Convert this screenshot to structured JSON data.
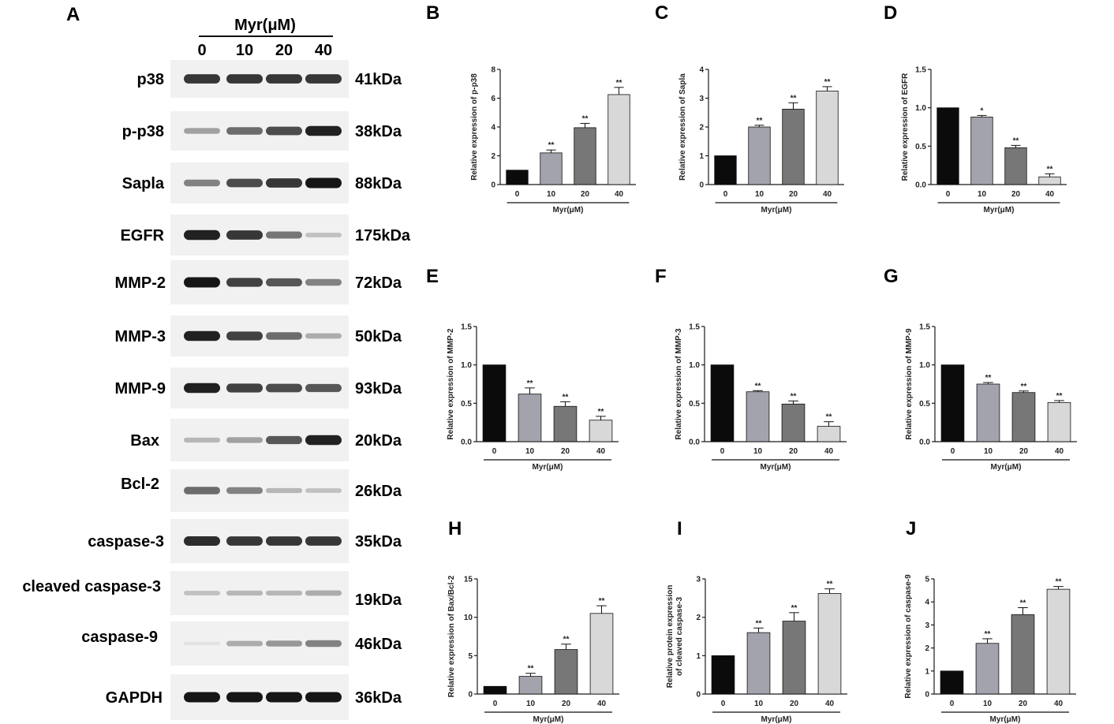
{
  "blot": {
    "letter": "A",
    "title": "Myr(μM)",
    "lanes": [
      "0",
      "10",
      "20",
      "40"
    ],
    "rows": [
      {
        "protein": "p38",
        "size": "41kDa",
        "intensity": [
          0.85,
          0.85,
          0.85,
          0.85
        ]
      },
      {
        "protein": "p-p38",
        "size": "38kDa",
        "intensity": [
          0.35,
          0.6,
          0.75,
          0.95
        ]
      },
      {
        "protein": "Sapla",
        "size": "88kDa",
        "intensity": [
          0.5,
          0.75,
          0.85,
          1.0
        ]
      },
      {
        "protein": "EGFR",
        "size": "175kDa",
        "intensity": [
          0.95,
          0.85,
          0.55,
          0.2
        ]
      },
      {
        "protein": "MMP-2",
        "size": "72kDa",
        "intensity": [
          1.0,
          0.8,
          0.7,
          0.5
        ]
      },
      {
        "protein": "MMP-3",
        "size": "50kDa",
        "intensity": [
          0.95,
          0.8,
          0.6,
          0.3
        ]
      },
      {
        "protein": "MMP-9",
        "size": "93kDa",
        "intensity": [
          0.95,
          0.8,
          0.75,
          0.7
        ]
      },
      {
        "protein": "Bax",
        "size": "20kDa",
        "intensity": [
          0.25,
          0.35,
          0.7,
          0.95
        ]
      },
      {
        "protein": "Bcl-2",
        "size": "26kDa",
        "intensity": [
          0.6,
          0.5,
          0.25,
          0.2
        ]
      },
      {
        "protein": "caspase-3",
        "size": "35kDa",
        "intensity": [
          0.9,
          0.85,
          0.85,
          0.85
        ]
      },
      {
        "protein": "cleaved caspase-3",
        "size": "19kDa",
        "intensity": [
          0.2,
          0.25,
          0.25,
          0.3
        ]
      },
      {
        "protein": "caspase-9",
        "size": "46kDa",
        "intensity": [
          0.05,
          0.3,
          0.4,
          0.5
        ]
      },
      {
        "protein": "GAPDH",
        "size": "36kDa",
        "intensity": [
          1.0,
          1.0,
          1.0,
          1.0
        ]
      }
    ]
  },
  "colors": {
    "bar_fills": [
      "#0b0b0b",
      "#a3a3ad",
      "#777777",
      "#d8d8d8"
    ],
    "axis": "#1a1a1a"
  },
  "chart_data": [
    {
      "letter": "B",
      "type": "bar",
      "ylabel": "Relative expression of p-p38",
      "xlabel": "Myr(μM)",
      "categories": [
        "0",
        "10",
        "20",
        "40"
      ],
      "values": [
        1.0,
        2.2,
        3.95,
        6.25
      ],
      "errors": [
        0,
        0.2,
        0.3,
        0.5
      ],
      "significance": [
        "",
        "**",
        "**",
        "**"
      ],
      "ylim": [
        0,
        8
      ],
      "yticks": [
        0,
        2,
        4,
        6,
        8
      ],
      "ytick_labels": [
        "0",
        "2",
        "4",
        "6",
        "8"
      ]
    },
    {
      "letter": "C",
      "type": "bar",
      "ylabel": "Relative expression of Sapla",
      "xlabel": "Myr(μM)",
      "categories": [
        "0",
        "10",
        "20",
        "40"
      ],
      "values": [
        1.0,
        2.0,
        2.62,
        3.25
      ],
      "errors": [
        0,
        0.06,
        0.22,
        0.15
      ],
      "significance": [
        "",
        "**",
        "**",
        "**"
      ],
      "ylim": [
        0,
        4
      ],
      "yticks": [
        0,
        1,
        2,
        3,
        4
      ],
      "ytick_labels": [
        "0",
        "1",
        "2",
        "3",
        "4"
      ]
    },
    {
      "letter": "D",
      "type": "bar",
      "ylabel": "Relative expression of EGFR",
      "xlabel": "Myr(μM)",
      "categories": [
        "0",
        "10",
        "20",
        "40"
      ],
      "values": [
        1.0,
        0.88,
        0.48,
        0.1
      ],
      "errors": [
        0,
        0.02,
        0.03,
        0.04
      ],
      "significance": [
        "",
        "*",
        "**",
        "**"
      ],
      "ylim": [
        0,
        1.5
      ],
      "yticks": [
        0,
        0.5,
        1.0,
        1.5
      ],
      "ytick_labels": [
        "0.0",
        "0.5",
        "1.0",
        "1.5"
      ]
    },
    {
      "letter": "E",
      "type": "bar",
      "ylabel": "Relative expression of MMP-2",
      "xlabel": "Myr(μM)",
      "categories": [
        "0",
        "10",
        "20",
        "40"
      ],
      "values": [
        1.0,
        0.62,
        0.46,
        0.28
      ],
      "errors": [
        0,
        0.08,
        0.06,
        0.05
      ],
      "significance": [
        "",
        "**",
        "**",
        "**"
      ],
      "ylim": [
        0,
        1.5
      ],
      "yticks": [
        0,
        0.5,
        1.0,
        1.5
      ],
      "ytick_labels": [
        "0.0",
        "0.5",
        "1.0",
        "1.5"
      ]
    },
    {
      "letter": "F",
      "type": "bar",
      "ylabel": "Relative expression of MMP-3",
      "xlabel": "Myr(μM)",
      "categories": [
        "0",
        "10",
        "20",
        "40"
      ],
      "values": [
        1.0,
        0.65,
        0.49,
        0.2
      ],
      "errors": [
        0,
        0.015,
        0.04,
        0.06
      ],
      "significance": [
        "",
        "**",
        "**",
        "**"
      ],
      "ylim": [
        0,
        1.5
      ],
      "yticks": [
        0,
        0.5,
        1.0,
        1.5
      ],
      "ytick_labels": [
        "0.0",
        "0.5",
        "1.0",
        "1.5"
      ]
    },
    {
      "letter": "G",
      "type": "bar",
      "ylabel": "Relative expression of MMP-9",
      "xlabel": "Myr(μM)",
      "categories": [
        "0",
        "10",
        "20",
        "40"
      ],
      "values": [
        1.0,
        0.75,
        0.64,
        0.51
      ],
      "errors": [
        0,
        0.02,
        0.02,
        0.025
      ],
      "significance": [
        "",
        "**",
        "**",
        "**"
      ],
      "ylim": [
        0,
        1.5
      ],
      "yticks": [
        0,
        0.5,
        1.0,
        1.5
      ],
      "ytick_labels": [
        "0.0",
        "0.5",
        "1.0",
        "1.5"
      ]
    },
    {
      "letter": "H",
      "type": "bar",
      "ylabel": "Relative expression of Bax/Bcl-2",
      "xlabel": "Myr(μM)",
      "categories": [
        "0",
        "10",
        "20",
        "40"
      ],
      "values": [
        1.0,
        2.3,
        5.8,
        10.5
      ],
      "errors": [
        0,
        0.4,
        0.7,
        1.0
      ],
      "significance": [
        "",
        "**",
        "**",
        "**"
      ],
      "ylim": [
        0,
        15
      ],
      "yticks": [
        0,
        5,
        10,
        15
      ],
      "ytick_labels": [
        "0",
        "5",
        "10",
        "15"
      ]
    },
    {
      "letter": "I",
      "type": "bar",
      "ylabel": [
        "Relative protein expression",
        "of cleaved caspase-3"
      ],
      "xlabel": "Myr(μM)",
      "categories": [
        "0",
        "10",
        "20",
        "40"
      ],
      "values": [
        1.0,
        1.6,
        1.9,
        2.62
      ],
      "errors": [
        0,
        0.12,
        0.22,
        0.12
      ],
      "significance": [
        "",
        "**",
        "**",
        "**"
      ],
      "ylim": [
        0,
        3
      ],
      "yticks": [
        0,
        1,
        2,
        3
      ],
      "ytick_labels": [
        "0",
        "1",
        "2",
        "3"
      ]
    },
    {
      "letter": "J",
      "type": "bar",
      "ylabel": "Relative expression of caspase-9",
      "xlabel": "Myr(μM)",
      "categories": [
        "0",
        "10",
        "20",
        "40"
      ],
      "values": [
        1.0,
        2.2,
        3.45,
        4.55
      ],
      "errors": [
        0,
        0.2,
        0.3,
        0.12
      ],
      "significance": [
        "",
        "**",
        "**",
        "**"
      ],
      "ylim": [
        0,
        5
      ],
      "yticks": [
        0,
        1,
        2,
        3,
        4,
        5
      ],
      "ytick_labels": [
        "0",
        "1",
        "2",
        "3",
        "4",
        "5"
      ]
    }
  ]
}
